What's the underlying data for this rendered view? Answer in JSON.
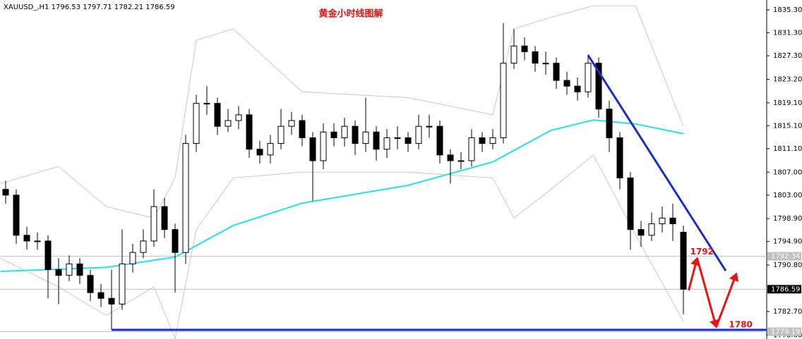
{
  "chart_data": {
    "type": "candlestick",
    "title": "XAUUSD_,H1",
    "subtitle": "黄金小时线图解",
    "open": [
      1804,
      1803,
      1796,
      1795,
      1795,
      1790,
      1789,
      1791,
      1789,
      1786,
      1785,
      1784,
      1791,
      1793,
      1795,
      1801,
      1797,
      1793,
      1812,
      1819,
      1819,
      1815,
      1816,
      1817,
      1811,
      1810,
      1812,
      1815,
      1816,
      1813,
      1809,
      1814,
      1813,
      1815,
      1812,
      1814,
      1811,
      1813,
      1813,
      1812,
      1815,
      1815,
      1810,
      1809,
      1809,
      1813,
      1812,
      1813,
      1826,
      1829,
      1828,
      1826,
      1826,
      1823,
      1822,
      1821,
      1826,
      1818,
      1813,
      1806,
      1797,
      1796,
      1798,
      1799,
      1796.53
    ],
    "high": [
      1805.5,
      1804,
      1797.5,
      1796.5,
      1796,
      1792,
      1792.5,
      1792,
      1790,
      1787.5,
      1790,
      1797,
      1794.5,
      1797,
      1804,
      1802.5,
      1798,
      1813.5,
      1820.5,
      1822,
      1820,
      1818,
      1818.5,
      1818,
      1812.5,
      1813.5,
      1818,
      1817.5,
      1817,
      1814,
      1815.5,
      1815.5,
      1816.5,
      1816,
      1820,
      1815,
      1814.5,
      1815,
      1814,
      1817,
      1817,
      1816,
      1811,
      1810.5,
      1814.5,
      1814,
      1814.5,
      1833,
      1832,
      1830.5,
      1829,
      1828,
      1827,
      1824.5,
      1823.5,
      1827.5,
      1827,
      1819.5,
      1814,
      1807,
      1798.5,
      1800,
      1801,
      1801.5,
      1797.71
    ],
    "low": [
      1801.5,
      1794.5,
      1793.5,
      1793.5,
      1785,
      1784,
      1788,
      1787.5,
      1784.5,
      1783.5,
      1779.5,
      1783,
      1789.5,
      1792,
      1794,
      1795.5,
      1786,
      1791,
      1810.5,
      1817,
      1813.5,
      1814,
      1814.5,
      1809.5,
      1808.5,
      1808.5,
      1811,
      1813.5,
      1811.5,
      1802,
      1807.5,
      1811.5,
      1811.5,
      1810,
      1810.5,
      1809,
      1809.5,
      1811,
      1810.5,
      1811,
      1813,
      1808.5,
      1805,
      1807.5,
      1808,
      1810.5,
      1811,
      1812,
      1825,
      1826.5,
      1824.5,
      1824,
      1821.5,
      1820.5,
      1819.5,
      1820,
      1816.5,
      1810.5,
      1804,
      1793.5,
      1794,
      1795,
      1796.5,
      1795,
      1782.21
    ],
    "close": [
      1803,
      1796,
      1795,
      1795,
      1790,
      1789,
      1791,
      1789,
      1786,
      1785,
      1784,
      1791,
      1793,
      1795,
      1801,
      1797,
      1793,
      1812,
      1819,
      1819,
      1815,
      1816,
      1817,
      1811,
      1810,
      1812,
      1815,
      1816,
      1813,
      1809,
      1814,
      1813,
      1815,
      1812,
      1814,
      1811,
      1813,
      1813,
      1812,
      1815,
      1815,
      1810,
      1809,
      1809,
      1813,
      1812,
      1813,
      1826,
      1829,
      1828,
      1826,
      1826,
      1823,
      1822,
      1821,
      1826,
      1818,
      1813,
      1806,
      1797,
      1796,
      1798,
      1799,
      1798,
      1786.59
    ],
    "ma": {
      "color": "#22e0f0",
      "x": [
        -0.5,
        9.5,
        16,
        21.5,
        28,
        38,
        46,
        51.5,
        55.5,
        59.5,
        64
      ],
      "values": [
        1789.7,
        1790.4,
        1792.2,
        1797.7,
        1801.6,
        1804.7,
        1808.8,
        1814.3,
        1816.1,
        1815.4,
        1813.7
      ]
    },
    "bands": {
      "color": "#c8c8c8",
      "x": [
        -0.5,
        5,
        9.5,
        14,
        16,
        18,
        21.5,
        28,
        38,
        46,
        48,
        51.5,
        55.5,
        59.5,
        64
      ],
      "upper": [
        1805,
        1808,
        1801,
        1799,
        1806,
        1830,
        1832,
        1821,
        1820,
        1817,
        1832,
        1834,
        1836,
        1836,
        1815
      ],
      "lower": [
        1792,
        1787,
        1782,
        1787,
        1778,
        1797,
        1806,
        1807,
        1807,
        1806,
        1799,
        1804,
        1810,
        1796,
        1781
      ]
    },
    "trendline": {
      "color": "#1a2ccc",
      "x": [
        55,
        68
      ],
      "values": [
        1827.4,
        1789.8
      ]
    },
    "support": {
      "color": "#1a2ccc",
      "x": 10,
      "value": 1779.5
    },
    "projection": {
      "color": "#ee1111",
      "x": [
        64.5,
        65.3,
        67.1,
        69
      ],
      "values": [
        1786.4,
        1792,
        1780,
        1789.3
      ]
    },
    "price_lines": [
      1792.34,
      1786.59,
      1779.19
    ],
    "ylim": [
      1777.91,
      1837.02
    ],
    "yticks": [
      {
        "value": 1835.3,
        "label": "1835.30"
      },
      {
        "value": 1831.3,
        "label": "1831.30"
      },
      {
        "value": 1827.3,
        "label": "1827.30"
      },
      {
        "value": 1823.2,
        "label": "1823.20"
      },
      {
        "value": 1819.1,
        "label": "1819.10"
      },
      {
        "value": 1815.1,
        "label": "1815.10"
      },
      {
        "value": 1811.1,
        "label": "1811.10"
      },
      {
        "value": 1807,
        "label": "1807.00"
      },
      {
        "value": 1803,
        "label": "1803.00"
      },
      {
        "value": 1798.9,
        "label": "1798.90"
      },
      {
        "value": 1794.9,
        "label": "1794.90"
      },
      {
        "value": 1790.8,
        "label": "1790.80"
      },
      {
        "value": 1782.7,
        "label": "1782.70"
      },
      {
        "value": 1778.6,
        "label": "1778.60"
      }
    ]
  }
}
